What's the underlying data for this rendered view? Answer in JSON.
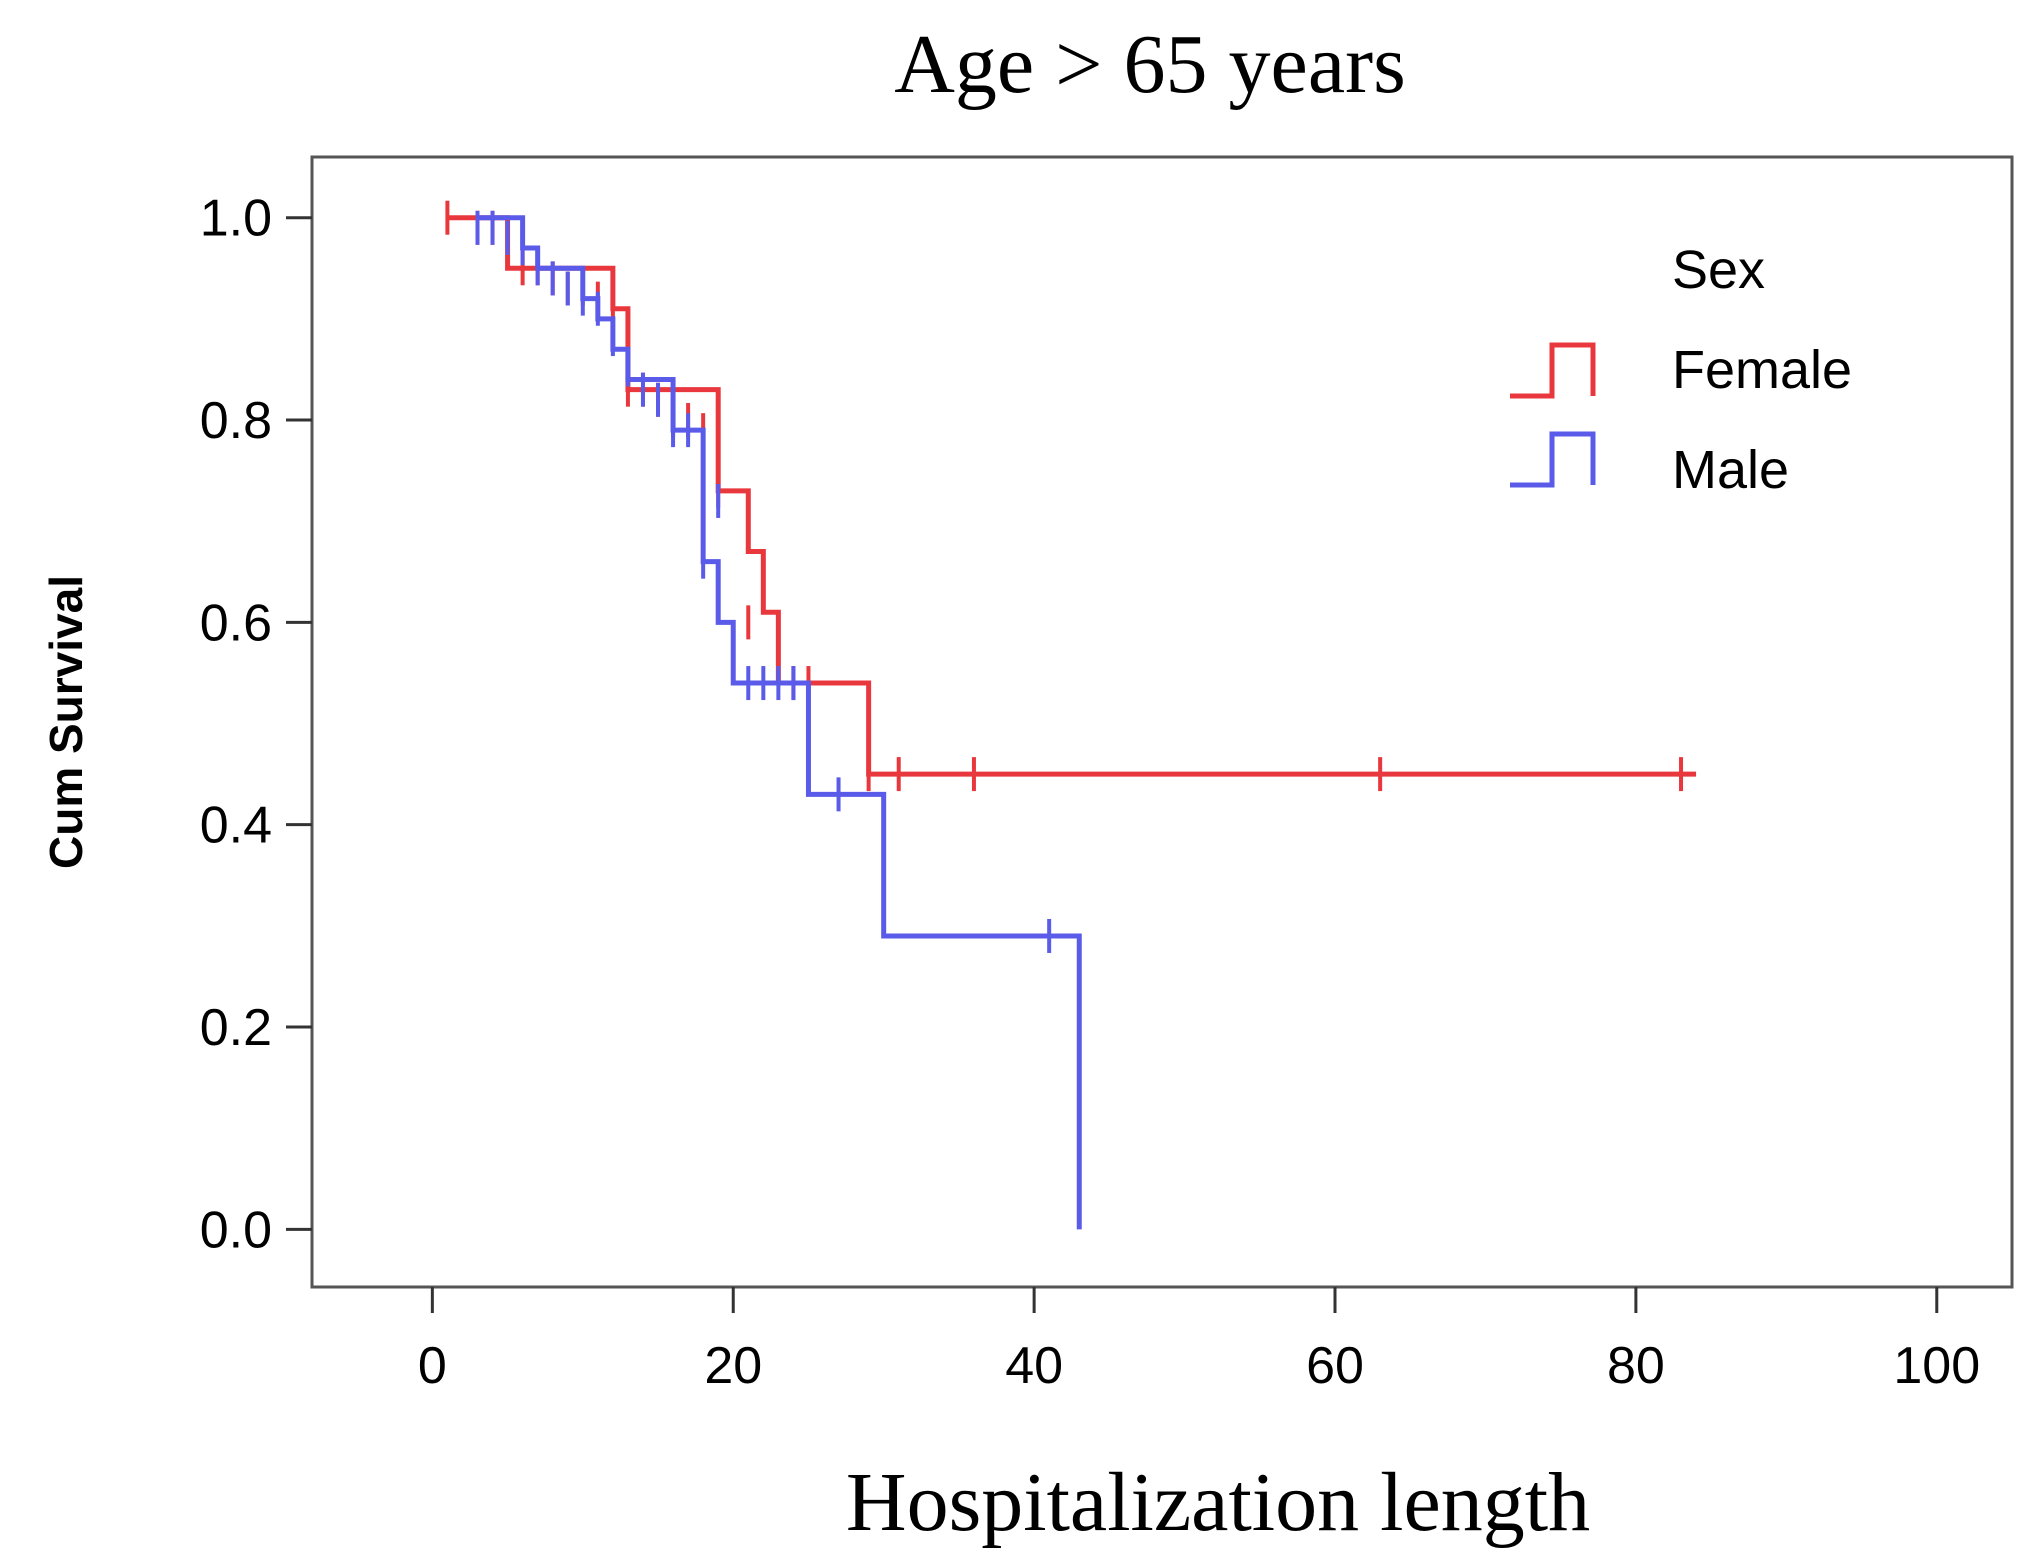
{
  "chart_data": {
    "type": "line",
    "subtype": "kaplan-meier step",
    "title": "Age > 65 years",
    "xlabel": "Hospitalization length",
    "ylabel": "Cum Survival",
    "xlim": [
      -8,
      105
    ],
    "ylim": [
      -0.057,
      1.06
    ],
    "x_ticks": [
      0,
      20,
      40,
      60,
      80,
      100
    ],
    "y_ticks": [
      0.0,
      0.2,
      0.4,
      0.6,
      0.8,
      1.0
    ],
    "x_tick_labels": [
      "0",
      "20",
      "40",
      "60",
      "80",
      "100"
    ],
    "y_tick_labels": [
      "0.0",
      "0.2",
      "0.4",
      "0.6",
      "0.8",
      "1.0"
    ],
    "grid": false,
    "legend": {
      "title": "Sex",
      "position": "top-right"
    },
    "series": [
      {
        "name": "Female",
        "color": "#e8383d",
        "steps": [
          [
            1,
            1.0
          ],
          [
            5,
            0.95
          ],
          [
            12,
            0.91
          ],
          [
            13,
            0.83
          ],
          [
            19,
            0.73
          ],
          [
            21,
            0.67
          ],
          [
            22,
            0.61
          ],
          [
            23,
            0.54
          ],
          [
            29,
            0.45
          ],
          [
            84,
            0.45
          ]
        ],
        "censored": [
          [
            1,
            1.0
          ],
          [
            3,
            0.99
          ],
          [
            4,
            0.99
          ],
          [
            5,
            0.98
          ],
          [
            6,
            0.95
          ],
          [
            7,
            0.95
          ],
          [
            8,
            0.94
          ],
          [
            9,
            0.93
          ],
          [
            10,
            0.93
          ],
          [
            11,
            0.92
          ],
          [
            12,
            0.91
          ],
          [
            13,
            0.83
          ],
          [
            14,
            0.83
          ],
          [
            15,
            0.82
          ],
          [
            16,
            0.8
          ],
          [
            17,
            0.8
          ],
          [
            18,
            0.79
          ],
          [
            19,
            0.73
          ],
          [
            21,
            0.6
          ],
          [
            24,
            0.54
          ],
          [
            25,
            0.54
          ],
          [
            29,
            0.45
          ],
          [
            31,
            0.45
          ],
          [
            36,
            0.45
          ],
          [
            63,
            0.45
          ],
          [
            83,
            0.45
          ]
        ]
      },
      {
        "name": "Male",
        "color": "#5b5bea",
        "steps": [
          [
            3,
            1.0
          ],
          [
            6,
            0.97
          ],
          [
            7,
            0.95
          ],
          [
            10,
            0.92
          ],
          [
            11,
            0.9
          ],
          [
            12,
            0.87
          ],
          [
            13,
            0.84
          ],
          [
            16,
            0.79
          ],
          [
            18,
            0.66
          ],
          [
            19,
            0.6
          ],
          [
            20,
            0.54
          ],
          [
            25,
            0.43
          ],
          [
            30,
            0.29
          ],
          [
            43,
            0.29
          ],
          [
            43,
            0.0
          ]
        ],
        "censored": [
          [
            3,
            0.99
          ],
          [
            4,
            0.99
          ],
          [
            5,
            0.98
          ],
          [
            6,
            0.97
          ],
          [
            7,
            0.95
          ],
          [
            8,
            0.94
          ],
          [
            9,
            0.93
          ],
          [
            10,
            0.92
          ],
          [
            11,
            0.91
          ],
          [
            12,
            0.88
          ],
          [
            13,
            0.85
          ],
          [
            14,
            0.83
          ],
          [
            15,
            0.82
          ],
          [
            16,
            0.79
          ],
          [
            17,
            0.79
          ],
          [
            18,
            0.66
          ],
          [
            19,
            0.72
          ],
          [
            21,
            0.54
          ],
          [
            22,
            0.54
          ],
          [
            23,
            0.54
          ],
          [
            24,
            0.54
          ],
          [
            27,
            0.43
          ],
          [
            41,
            0.29
          ]
        ]
      }
    ]
  }
}
